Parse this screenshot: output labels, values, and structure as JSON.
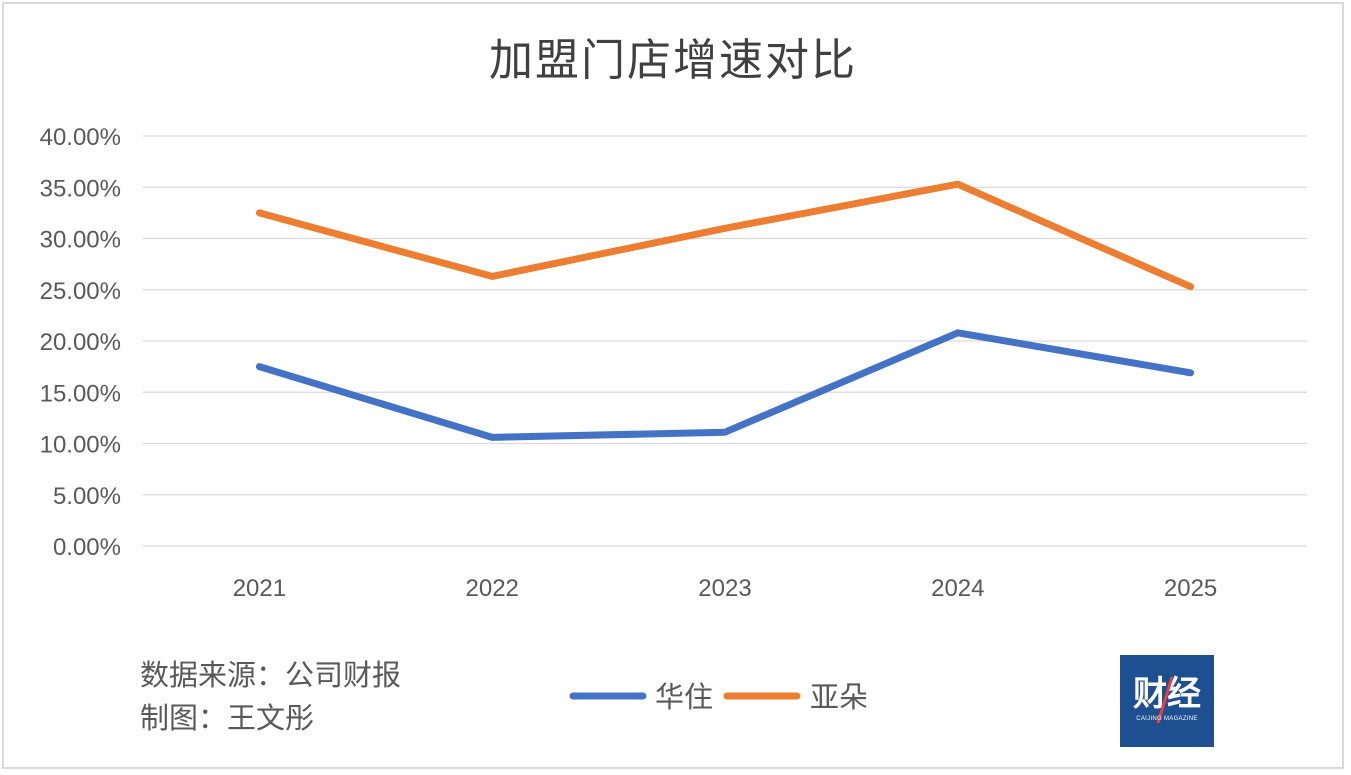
{
  "chart_data": {
    "type": "line",
    "title": "加盟门店增速对比",
    "categories": [
      "2021",
      "2022",
      "2023",
      "2024",
      "2025"
    ],
    "series": [
      {
        "name": "华住",
        "color": "#4472c4",
        "values": [
          17.5,
          10.6,
          11.1,
          20.8,
          16.9
        ]
      },
      {
        "name": "亚朵",
        "color": "#ed7d31",
        "values": [
          32.5,
          26.3,
          31.0,
          35.3,
          25.3
        ]
      }
    ],
    "yticks": [
      "0.00%",
      "5.00%",
      "10.00%",
      "15.00%",
      "20.00%",
      "25.00%",
      "30.00%",
      "35.00%",
      "40.00%"
    ],
    "ytick_values": [
      0,
      5,
      10,
      15,
      20,
      25,
      30,
      35,
      40
    ],
    "ylim": [
      0,
      40
    ],
    "xlabel": "",
    "ylabel": "",
    "grid": true,
    "legend_position": "bottom-center",
    "gridline_color": "#d9d9d9"
  },
  "footer": {
    "source": "数据来源：公司财报",
    "author": "制图：王文彤"
  },
  "logo": {
    "text": "财经",
    "subtext": "CAIJING MAGAZINE",
    "bg_color": "#1d4f91",
    "accent_color": "#e8413a"
  }
}
